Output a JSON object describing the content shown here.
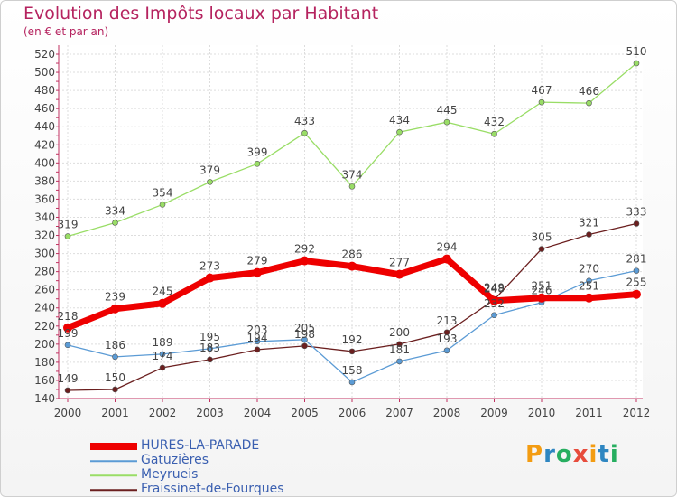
{
  "title": "Evolution des Impôts locaux par Habitant",
  "subtitle": "(en € et par an)",
  "logo": "Proxiti",
  "chart_data": {
    "type": "line",
    "x": [
      "2000",
      "2001",
      "2002",
      "2003",
      "2004",
      "2005",
      "2006",
      "2007",
      "2008",
      "2009",
      "2010",
      "2011",
      "2012"
    ],
    "ylim": [
      140,
      520
    ],
    "yticks": [
      140,
      160,
      180,
      200,
      220,
      240,
      260,
      280,
      300,
      320,
      340,
      360,
      380,
      400,
      420,
      440,
      460,
      480,
      500,
      520
    ],
    "grid": true,
    "legend_position": "bottom-left",
    "series": [
      {
        "name": "HURES-LA-PARADE",
        "color": "#ee0000",
        "values": [
          218,
          239,
          245,
          273,
          279,
          292,
          286,
          277,
          294,
          248,
          251,
          251,
          255
        ]
      },
      {
        "name": "Gatuzières",
        "color": "#5b9bd5",
        "values": [
          199,
          186,
          189,
          195,
          203,
          205,
          158,
          181,
          193,
          232,
          246,
          270,
          281
        ]
      },
      {
        "name": "Meyrueis",
        "color": "#99dd66",
        "values": [
          319,
          334,
          354,
          379,
          399,
          433,
          374,
          434,
          445,
          432,
          467,
          466,
          510
        ]
      },
      {
        "name": "Fraissinet-de-Fourques",
        "color": "#6b1f1f",
        "values": [
          149,
          150,
          174,
          183,
          194,
          198,
          192,
          200,
          213,
          249,
          305,
          321,
          333
        ]
      }
    ],
    "label_values": [
      [
        218,
        239,
        245,
        273,
        279,
        292,
        286,
        277,
        294,
        248,
        251,
        251,
        255
      ],
      [
        199,
        186,
        189,
        195,
        203,
        205,
        158,
        181,
        193,
        232,
        246,
        270,
        281
      ],
      [
        319,
        334,
        354,
        379,
        399,
        433,
        374,
        434,
        445,
        432,
        467,
        466,
        510
      ],
      [
        149,
        150,
        174,
        183,
        194,
        198,
        192,
        200,
        213,
        249,
        305,
        321,
        333
      ]
    ]
  }
}
